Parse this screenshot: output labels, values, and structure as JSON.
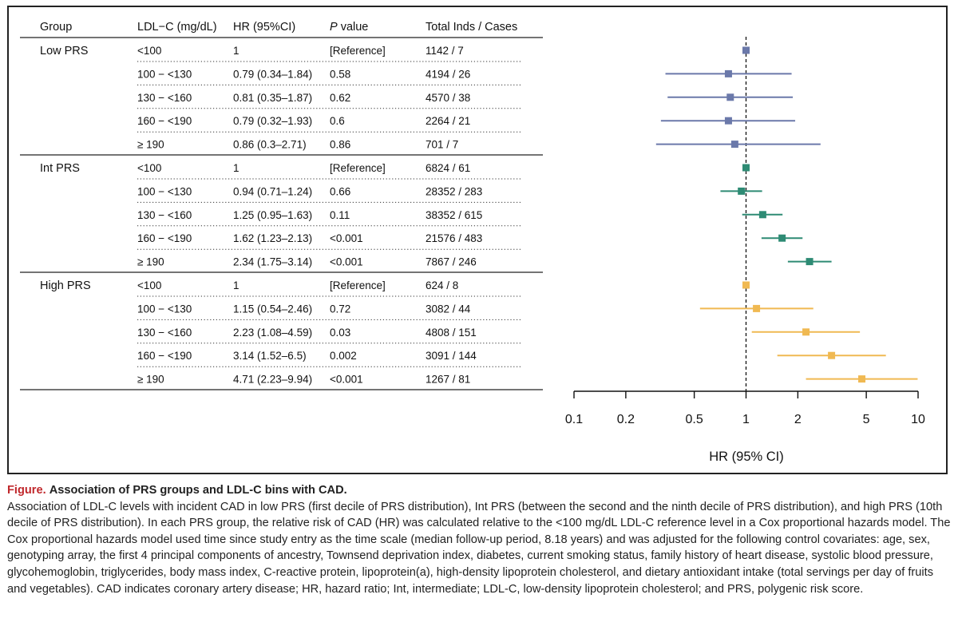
{
  "chart_data": {
    "type": "forest",
    "columns": {
      "group": "Group",
      "ldl": "LDL−C (mg/dL)",
      "hr": "HR (95%CI)",
      "p_italic": "P",
      "p_rest": " value",
      "total": "Total Inds / Cases"
    },
    "reference_line": 1,
    "x_scale": "log",
    "xlim": [
      0.1,
      10
    ],
    "x_ticks": [
      0.1,
      0.2,
      0.5,
      1,
      2,
      5,
      10
    ],
    "x_tick_labels": [
      "0.1",
      "0.2",
      "0.5",
      "1",
      "2",
      "5",
      "10"
    ],
    "xlabel": "HR (95% CI)",
    "groups": [
      {
        "name": "Low PRS",
        "color": "#6b79aa",
        "rows": [
          {
            "ldl": "<100",
            "hr_text": "1",
            "p": "[Reference]",
            "total": "1142 / 7",
            "hr": 1,
            "lo": 1,
            "hi": 1
          },
          {
            "ldl": "100 − <130",
            "hr_text": "0.79 (0.34–1.84)",
            "p": "0.58",
            "total": "4194 / 26",
            "hr": 0.79,
            "lo": 0.34,
            "hi": 1.84
          },
          {
            "ldl": "130 − <160",
            "hr_text": "0.81 (0.35–1.87)",
            "p": "0.62",
            "total": "4570 / 38",
            "hr": 0.81,
            "lo": 0.35,
            "hi": 1.87
          },
          {
            "ldl": "160 − <190",
            "hr_text": "0.79 (0.32–1.93)",
            "p": "0.6",
            "total": "2264 / 21",
            "hr": 0.79,
            "lo": 0.32,
            "hi": 1.93
          },
          {
            "ldl": "≥ 190",
            "hr_text": "0.86 (0.3–2.71)",
            "p": "0.86",
            "total": "701 / 7",
            "hr": 0.86,
            "lo": 0.3,
            "hi": 2.71
          }
        ]
      },
      {
        "name": "Int PRS",
        "color": "#2e8b74",
        "rows": [
          {
            "ldl": "<100",
            "hr_text": "1",
            "p": "[Reference]",
            "total": "6824 / 61",
            "hr": 1,
            "lo": 1,
            "hi": 1
          },
          {
            "ldl": "100 − <130",
            "hr_text": "0.94 (0.71–1.24)",
            "p": "0.66",
            "total": "28352 / 283",
            "hr": 0.94,
            "lo": 0.71,
            "hi": 1.24
          },
          {
            "ldl": "130 − <160",
            "hr_text": "1.25 (0.95–1.63)",
            "p": "0.11",
            "total": "38352 / 615",
            "hr": 1.25,
            "lo": 0.95,
            "hi": 1.63
          },
          {
            "ldl": "160 − <190",
            "hr_text": "1.62 (1.23–2.13)",
            "p": "<0.001",
            "total": "21576 / 483",
            "hr": 1.62,
            "lo": 1.23,
            "hi": 2.13
          },
          {
            "ldl": "≥ 190",
            "hr_text": "2.34 (1.75–3.14)",
            "p": "<0.001",
            "total": "7867 / 246",
            "hr": 2.34,
            "lo": 1.75,
            "hi": 3.14
          }
        ]
      },
      {
        "name": "High PRS",
        "color": "#f0b952",
        "rows": [
          {
            "ldl": "<100",
            "hr_text": "1",
            "p": "[Reference]",
            "total": "624 / 8",
            "hr": 1,
            "lo": 1,
            "hi": 1
          },
          {
            "ldl": "100 − <130",
            "hr_text": "1.15 (0.54–2.46)",
            "p": "0.72",
            "total": "3082 / 44",
            "hr": 1.15,
            "lo": 0.54,
            "hi": 2.46
          },
          {
            "ldl": "130 − <160",
            "hr_text": "2.23 (1.08–4.59)",
            "p": "0.03",
            "total": "4808 / 151",
            "hr": 2.23,
            "lo": 1.08,
            "hi": 4.59
          },
          {
            "ldl": "160 − <190",
            "hr_text": "3.14 (1.52–6.5)",
            "p": "0.002",
            "total": "3091 / 144",
            "hr": 3.14,
            "lo": 1.52,
            "hi": 6.5
          },
          {
            "ldl": "≥ 190",
            "hr_text": "4.71 (2.23–9.94)",
            "p": "<0.001",
            "total": "1267 / 81",
            "hr": 4.71,
            "lo": 2.23,
            "hi": 9.94
          }
        ]
      }
    ]
  },
  "caption": {
    "label": "Figure.",
    "title": "Association of PRS groups and LDL-C bins with CAD.",
    "text": "Association of LDL-C levels with incident CAD in low PRS (first decile of PRS distribution), Int PRS (between the second and the ninth decile of PRS distribution), and high PRS (10th decile of PRS distribution). In each PRS group, the relative risk of CAD (HR) was calculated relative to the <100 mg/dL LDL-C reference level in a Cox proportional hazards model. The Cox proportional hazards model used time since study entry as the time scale (median follow-up period, 8.18 years) and was adjusted for the following control covariates: age, sex, genotyping array, the first 4 principal components of ancestry, Townsend deprivation index, diabetes, current smoking status, family history of heart disease, systolic blood pressure, glycohemoglobin, triglycerides, body mass index, C-reactive protein, lipoprotein(a), high-density lipoprotein cholesterol, and dietary antioxidant intake (total servings per day of fruits and vegetables). CAD indicates coronary artery disease; HR, hazard ratio; Int, intermediate; LDL-C, low-density lipoprotein cholesterol; and PRS, polygenic risk score."
  }
}
